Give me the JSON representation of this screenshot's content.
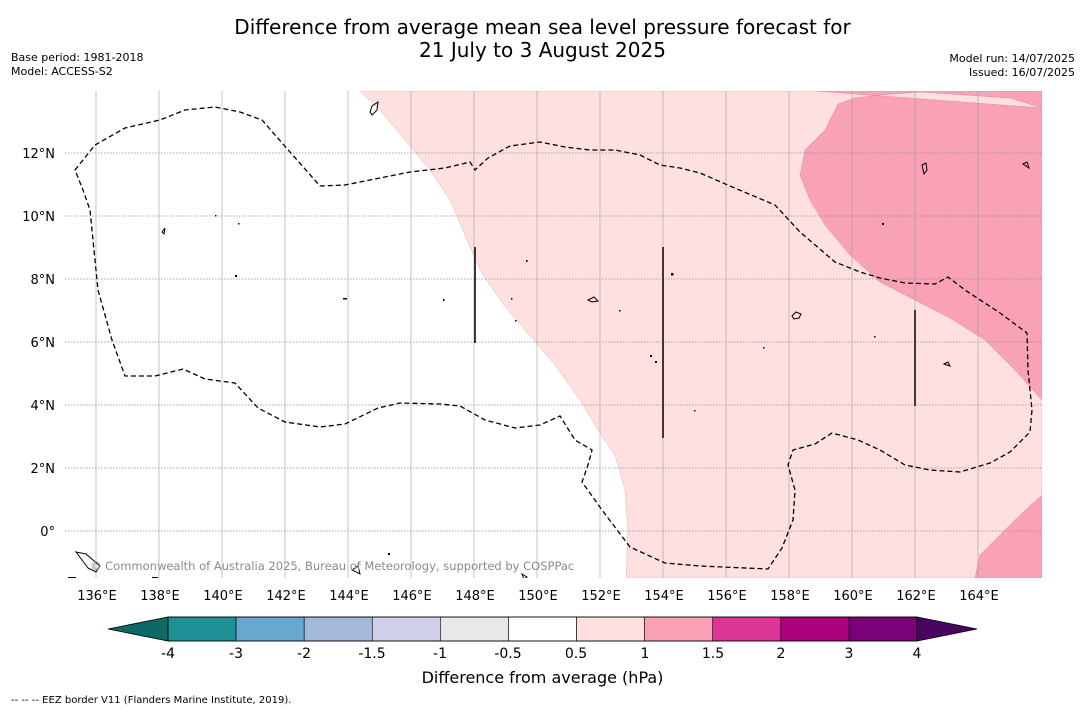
{
  "title": {
    "line1": "Difference from average mean sea level pressure forecast for",
    "line2": "21 July to 3 August 2025"
  },
  "meta": {
    "base_period": "Base period: 1981-2018",
    "model": "Model: ACCESS-S2",
    "model_run": "Model run: 14/07/2025",
    "issued": "Issued: 16/07/2025"
  },
  "map": {
    "lon_range": [
      135.2,
      166.0
    ],
    "lat_range": [
      -1.5,
      14.0
    ],
    "lon_ticks": [
      "136°E",
      "138°E",
      "140°E",
      "142°E",
      "144°E",
      "146°E",
      "148°E",
      "150°E",
      "152°E",
      "154°E",
      "156°E",
      "158°E",
      "160°E",
      "162°E",
      "164°E"
    ],
    "lat_ticks": [
      "12°N",
      "10°N",
      "8°N",
      "6°N",
      "4°N",
      "2°N",
      "0°"
    ],
    "copyright": "© Commonwealth of Australia 2025, Bureau of Meteorology, supported by COSPPac",
    "colors": {
      "light_pink": "#fde0df",
      "mid_pink": "#f9a1b7"
    }
  },
  "colorbar": {
    "title": "Difference from average (hPa)",
    "labels": [
      "-4",
      "-3",
      "-2",
      "-1.5",
      "-1",
      "-0.5",
      "0.5",
      "1",
      "1.5",
      "2",
      "3",
      "4"
    ],
    "colors": [
      "#1e9196",
      "#66a8d0",
      "#a4b8db",
      "#cfd0e8",
      "#e8e8e8",
      "#ffffff",
      "#fde0df",
      "#f9a1b7",
      "#dc3597",
      "#ae017e",
      "#7a0177"
    ],
    "under_color": "#0b6a64",
    "over_color": "#4a0560"
  },
  "footnote": "--  --  -- EEZ border V11 (Flanders Marine Institute, 2019)."
}
